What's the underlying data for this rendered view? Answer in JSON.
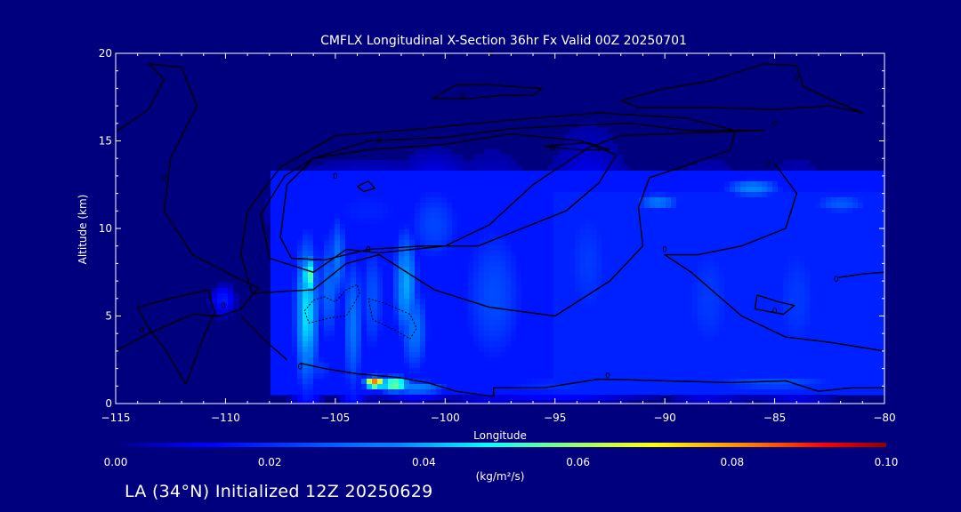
{
  "chart_data": {
    "type": "heatmap",
    "title": "CMFLX Longitudinal X-Section 36hr  Fx Valid 00Z 20250701",
    "xlabel": "Longitude",
    "ylabel": "Altitude (km)",
    "xlim": [
      -115,
      -80
    ],
    "ylim": [
      0,
      20
    ],
    "x_ticks": [
      -115,
      -110,
      -105,
      -100,
      -95,
      -90,
      -85,
      -80
    ],
    "x_tick_labels": [
      "−115",
      "−110",
      "−105",
      "−100",
      "−95",
      "−90",
      "−85",
      "−80"
    ],
    "y_ticks": [
      0,
      5,
      10,
      15,
      20
    ],
    "y_tick_labels": [
      "0",
      "5",
      "10",
      "15",
      "20"
    ],
    "colorbar": {
      "ticks": [
        0.0,
        0.02,
        0.04,
        0.06,
        0.08,
        0.1
      ],
      "tick_labels": [
        "0.00",
        "0.02",
        "0.04",
        "0.06",
        "0.08",
        "0.10"
      ],
      "units": "(kg/m²/s)",
      "min": 0.0,
      "max": 0.1
    },
    "field": {
      "description_units": "kg/m2/s",
      "blobs": [
        {
          "lon": -106.3,
          "alt": 5.2,
          "value": 0.046,
          "sx": 0.45,
          "sy": 3.4
        },
        {
          "lon": -106.2,
          "alt": 7.3,
          "value": 0.056,
          "sx": 0.25,
          "sy": 1.0
        },
        {
          "lon": -105.3,
          "alt": 6.6,
          "value": 0.03,
          "sx": 0.45,
          "sy": 2.8
        },
        {
          "lon": -104.9,
          "alt": 8.2,
          "value": 0.032,
          "sx": 0.35,
          "sy": 2.2
        },
        {
          "lon": -104.2,
          "alt": 4.5,
          "value": 0.032,
          "sx": 0.4,
          "sy": 3.5
        },
        {
          "lon": -103.3,
          "alt": 6.0,
          "value": 0.026,
          "sx": 0.5,
          "sy": 3.0
        },
        {
          "lon": -101.8,
          "alt": 6.8,
          "value": 0.04,
          "sx": 0.45,
          "sy": 2.6
        },
        {
          "lon": -101.4,
          "alt": 4.2,
          "value": 0.032,
          "sx": 0.55,
          "sy": 2.2
        },
        {
          "lon": -100.5,
          "alt": 10.2,
          "value": 0.024,
          "sx": 1.2,
          "sy": 2.2
        },
        {
          "lon": -103.5,
          "alt": 11.0,
          "value": 0.018,
          "sx": 2.5,
          "sy": 1.6
        },
        {
          "lon": -97.8,
          "alt": 6.2,
          "value": 0.025,
          "sx": 1.4,
          "sy": 4.0
        },
        {
          "lon": -103.2,
          "alt": 1.2,
          "value": 0.085,
          "sx": 0.35,
          "sy": 0.25
        },
        {
          "lon": -102.3,
          "alt": 1.1,
          "value": 0.06,
          "sx": 0.6,
          "sy": 0.35
        },
        {
          "lon": -101.3,
          "alt": 0.9,
          "value": 0.035,
          "sx": 1.2,
          "sy": 0.35
        },
        {
          "lon": -105.8,
          "alt": 2.0,
          "value": 0.022,
          "sx": 0.8,
          "sy": 0.8
        },
        {
          "lon": -110.1,
          "alt": 5.9,
          "value": 0.017,
          "sx": 0.35,
          "sy": 0.55
        },
        {
          "lon": -93.5,
          "alt": 8.0,
          "value": 0.022,
          "sx": 1.2,
          "sy": 4.0
        },
        {
          "lon": -88.0,
          "alt": 6.0,
          "value": 0.022,
          "sx": 1.3,
          "sy": 4.0
        },
        {
          "lon": -84.0,
          "alt": 6.0,
          "value": 0.022,
          "sx": 1.2,
          "sy": 4.0
        },
        {
          "lon": -90.3,
          "alt": 11.5,
          "value": 0.033,
          "sx": 0.9,
          "sy": 0.45
        },
        {
          "lon": -86.0,
          "alt": 12.3,
          "value": 0.035,
          "sx": 1.1,
          "sy": 0.45
        },
        {
          "lon": -82.0,
          "alt": 11.4,
          "value": 0.028,
          "sx": 1.2,
          "sy": 0.5
        },
        {
          "lon": -85.0,
          "alt": 1.2,
          "value": 0.026,
          "sx": 3.0,
          "sy": 0.45
        },
        {
          "lon": -95.0,
          "alt": 1.0,
          "value": 0.02,
          "sx": 3.0,
          "sy": 0.6
        }
      ],
      "background": [
        {
          "lon_min": -108,
          "lon_max": -80,
          "alt_min": 0.5,
          "alt_max": 13.2,
          "value": 0.016
        },
        {
          "lon_min": -95,
          "lon_max": -80,
          "alt_min": 0.5,
          "alt_max": 12.0,
          "value": 0.018
        }
      ]
    },
    "contours": [
      {
        "label": "0",
        "style": "solid",
        "points": [
          [
            -111.8,
            1.1
          ],
          [
            -112.8,
            3.2
          ],
          [
            -113.5,
            4.3
          ],
          [
            -114.0,
            5.5
          ],
          [
            -112.5,
            6.0
          ],
          [
            -110.8,
            6.5
          ],
          [
            -110.5,
            5.2
          ],
          [
            -111.0,
            3.8
          ],
          [
            -111.8,
            1.1
          ]
        ]
      },
      {
        "label": "0",
        "style": "solid",
        "points": [
          [
            -115.0,
            15.5
          ],
          [
            -113.5,
            16.8
          ],
          [
            -112.8,
            18.5
          ],
          [
            -113.5,
            19.4
          ],
          [
            -112.0,
            19.2
          ],
          [
            -111.3,
            17.0
          ],
          [
            -112.5,
            14.0
          ],
          [
            -112.8,
            11.0
          ],
          [
            -111.5,
            8.5
          ],
          [
            -109.5,
            7.2
          ],
          [
            -108.5,
            6.6
          ],
          [
            -109.3,
            5.4
          ],
          [
            -110.2,
            5.0
          ],
          [
            -111.5,
            5.1
          ],
          [
            -113.5,
            4.0
          ],
          [
            -115.0,
            3.0
          ]
        ]
      },
      {
        "label": "0",
        "style": "solid",
        "points": [
          [
            -107.2,
            2.5
          ],
          [
            -108.2,
            3.6
          ],
          [
            -109.3,
            5.0
          ]
        ]
      },
      {
        "label": "0",
        "style": "solid",
        "points": [
          [
            -106.6,
            2.3
          ],
          [
            -105.5,
            2.0
          ],
          [
            -104.0,
            1.7
          ],
          [
            -102.2,
            1.5
          ],
          [
            -100.8,
            1.2
          ],
          [
            -99.5,
            0.7
          ],
          [
            -97.8,
            0.4
          ],
          [
            -97.8,
            0.9
          ],
          [
            -95.5,
            0.9
          ],
          [
            -93.0,
            1.4
          ],
          [
            -90.0,
            1.3
          ],
          [
            -87.0,
            1.2
          ],
          [
            -84.5,
            1.3
          ],
          [
            -83.0,
            0.7
          ],
          [
            -81.5,
            0.9
          ],
          [
            -80.0,
            0.9
          ]
        ]
      },
      {
        "label": "0",
        "style": "solid",
        "points": [
          [
            -107.2,
            12.5
          ],
          [
            -106.0,
            14.0
          ],
          [
            -103.5,
            14.5
          ],
          [
            -100.0,
            14.8
          ],
          [
            -97.0,
            15.4
          ],
          [
            -93.8,
            15.0
          ],
          [
            -92.2,
            14.2
          ],
          [
            -93.0,
            12.6
          ],
          [
            -94.5,
            11.0
          ],
          [
            -96.5,
            10.0
          ],
          [
            -98.5,
            9.0
          ],
          [
            -101.0,
            9.0
          ],
          [
            -103.5,
            8.8
          ],
          [
            -105.5,
            8.2
          ],
          [
            -107.0,
            8.3
          ],
          [
            -107.5,
            9.5
          ],
          [
            -107.2,
            12.5
          ]
        ]
      },
      {
        "label": "0",
        "style": "solid",
        "points": [
          [
            -108.0,
            8.3
          ],
          [
            -108.4,
            10.8
          ],
          [
            -107.3,
            13.0
          ],
          [
            -106.0,
            14.0
          ],
          [
            -103.5,
            15.0
          ],
          [
            -100.0,
            15.2
          ],
          [
            -97.0,
            15.7
          ],
          [
            -94.0,
            15.9
          ],
          [
            -91.5,
            16.0
          ],
          [
            -89.0,
            15.6
          ],
          [
            -87.0,
            15.6
          ],
          [
            -85.5,
            15.6
          ],
          [
            -92.0,
            15.3
          ],
          [
            -93.5,
            14.6
          ],
          [
            -96.0,
            12.5
          ],
          [
            -98.0,
            10.2
          ],
          [
            -100.0,
            9.0
          ],
          [
            -103.0,
            8.6
          ],
          [
            -104.5,
            8.8
          ],
          [
            -106.0,
            7.5
          ],
          [
            -108.0,
            8.3
          ]
        ]
      },
      {
        "label": "0",
        "style": "solid",
        "points": [
          [
            -108.8,
            6.3
          ],
          [
            -109.3,
            8.5
          ],
          [
            -109.0,
            11.0
          ],
          [
            -107.5,
            13.5
          ],
          [
            -105.0,
            15.3
          ],
          [
            -101.0,
            15.7
          ],
          [
            -97.0,
            16.2
          ],
          [
            -93.0,
            16.6
          ],
          [
            -89.0,
            16.3
          ],
          [
            -86.8,
            15.6
          ],
          [
            -87.0,
            14.5
          ],
          [
            -89.0,
            13.6
          ],
          [
            -90.7,
            12.9
          ],
          [
            -91.2,
            11.2
          ],
          [
            -91.0,
            9.0
          ],
          [
            -92.5,
            7.0
          ],
          [
            -95.0,
            5.0
          ],
          [
            -98.0,
            5.5
          ],
          [
            -100.5,
            6.5
          ],
          [
            -103.0,
            8.5
          ],
          [
            -104.5,
            8.0
          ],
          [
            -106.0,
            6.5
          ],
          [
            -108.8,
            6.3
          ]
        ]
      },
      {
        "label": "0",
        "style": "solid",
        "points": [
          [
            -85.0,
            13.7
          ],
          [
            -84.0,
            12.0
          ],
          [
            -84.5,
            10.0
          ],
          [
            -86.5,
            9.0
          ],
          [
            -88.5,
            8.5
          ],
          [
            -90.0,
            8.5
          ],
          [
            -88.8,
            7.5
          ],
          [
            -86.5,
            5.0
          ],
          [
            -84.5,
            3.8
          ],
          [
            -82.5,
            3.5
          ],
          [
            -81.5,
            3.3
          ],
          [
            -80.0,
            3.0
          ]
        ]
      },
      {
        "label": "0",
        "style": "solid",
        "points": [
          [
            -85.8,
            6.2
          ],
          [
            -84.8,
            5.8
          ],
          [
            -84.1,
            5.6
          ],
          [
            -84.6,
            5.1
          ],
          [
            -85.9,
            5.4
          ],
          [
            -85.8,
            6.2
          ]
        ]
      },
      {
        "label": "0",
        "style": "solid",
        "points": [
          [
            -82.1,
            7.2
          ],
          [
            -81.0,
            7.4
          ],
          [
            -80.0,
            7.5
          ]
        ]
      },
      {
        "label": "0",
        "style": "solid",
        "points": [
          [
            -81.0,
            16.6
          ],
          [
            -82.5,
            17.4
          ],
          [
            -83.7,
            18.1
          ],
          [
            -84.0,
            19.3
          ],
          [
            -85.5,
            19.4
          ],
          [
            -88.0,
            18.4
          ],
          [
            -90.0,
            18.0
          ],
          [
            -92.0,
            17.3
          ],
          [
            -91.2,
            16.9
          ],
          [
            -88.0,
            16.9
          ],
          [
            -85.0,
            16.8
          ],
          [
            -82.5,
            17.0
          ],
          [
            -81.0,
            16.6
          ]
        ]
      },
      {
        "label": "0",
        "style": "solid",
        "points": [
          [
            -100.6,
            17.4
          ],
          [
            -99.5,
            18.2
          ],
          [
            -98.0,
            18.2
          ],
          [
            -95.6,
            18.0
          ],
          [
            -96.0,
            17.6
          ],
          [
            -97.5,
            17.6
          ],
          [
            -99.0,
            17.4
          ],
          [
            -100.6,
            17.4
          ]
        ]
      },
      {
        "label": "0",
        "style": "solid",
        "points": [
          [
            -95.5,
            14.7
          ],
          [
            -94.0,
            14.5
          ],
          [
            -92.5,
            14.5
          ],
          [
            -93.5,
            14.9
          ],
          [
            -95.5,
            14.7
          ]
        ]
      },
      {
        "label": "0",
        "style": "solid",
        "points": [
          [
            -104.0,
            12.4
          ],
          [
            -103.5,
            12.7
          ],
          [
            -103.2,
            12.3
          ],
          [
            -103.7,
            12.1
          ],
          [
            -104.0,
            12.4
          ]
        ]
      },
      {
        "label": "0",
        "style": "dotted",
        "points": [
          [
            -106.0,
            5.9
          ],
          [
            -105.5,
            6.1
          ],
          [
            -105.0,
            5.8
          ],
          [
            -104.5,
            6.5
          ],
          [
            -104.0,
            6.8
          ],
          [
            -103.9,
            6.3
          ],
          [
            -104.2,
            5.6
          ],
          [
            -104.5,
            5.0
          ],
          [
            -105.2,
            4.9
          ],
          [
            -106.2,
            4.6
          ],
          [
            -106.4,
            5.3
          ],
          [
            -106.0,
            5.9
          ]
        ]
      },
      {
        "label": "0",
        "style": "dotted",
        "points": [
          [
            -103.5,
            6.0
          ],
          [
            -102.7,
            5.7
          ],
          [
            -101.6,
            5.1
          ],
          [
            -101.3,
            4.3
          ],
          [
            -101.6,
            3.7
          ],
          [
            -102.3,
            4.2
          ],
          [
            -103.3,
            4.8
          ],
          [
            -103.5,
            6.0
          ]
        ]
      }
    ],
    "contour_labels": [
      {
        "lon": -113.8,
        "alt": 4.2,
        "text": "0"
      },
      {
        "lon": -112.8,
        "alt": 12.9,
        "text": "0"
      },
      {
        "lon": -110.1,
        "alt": 5.6,
        "text": "0"
      },
      {
        "lon": -106.6,
        "alt": 2.1,
        "text": "0"
      },
      {
        "lon": -103.5,
        "alt": 8.8,
        "text": "0"
      },
      {
        "lon": -105.0,
        "alt": 13.0,
        "text": "0"
      },
      {
        "lon": -103.0,
        "alt": 15.0,
        "text": "0"
      },
      {
        "lon": -99.2,
        "alt": 17.6,
        "text": "0"
      },
      {
        "lon": -95.1,
        "alt": 14.6,
        "text": "0"
      },
      {
        "lon": -92.6,
        "alt": 1.6,
        "text": "0"
      },
      {
        "lon": -90.0,
        "alt": 8.8,
        "text": "0"
      },
      {
        "lon": -85.0,
        "alt": 5.3,
        "text": "0"
      },
      {
        "lon": -85.0,
        "alt": 16.0,
        "text": "0"
      },
      {
        "lon": -85.3,
        "alt": 13.7,
        "text": "0"
      },
      {
        "lon": -82.2,
        "alt": 7.1,
        "text": "0"
      },
      {
        "lon": -84.0,
        "alt": 18.6,
        "text": "0"
      },
      {
        "lon": -97.9,
        "alt": 20.0,
        "text": "0"
      }
    ]
  },
  "footer": {
    "caption": "LA (34°N) Initialized 12Z 20250629"
  }
}
